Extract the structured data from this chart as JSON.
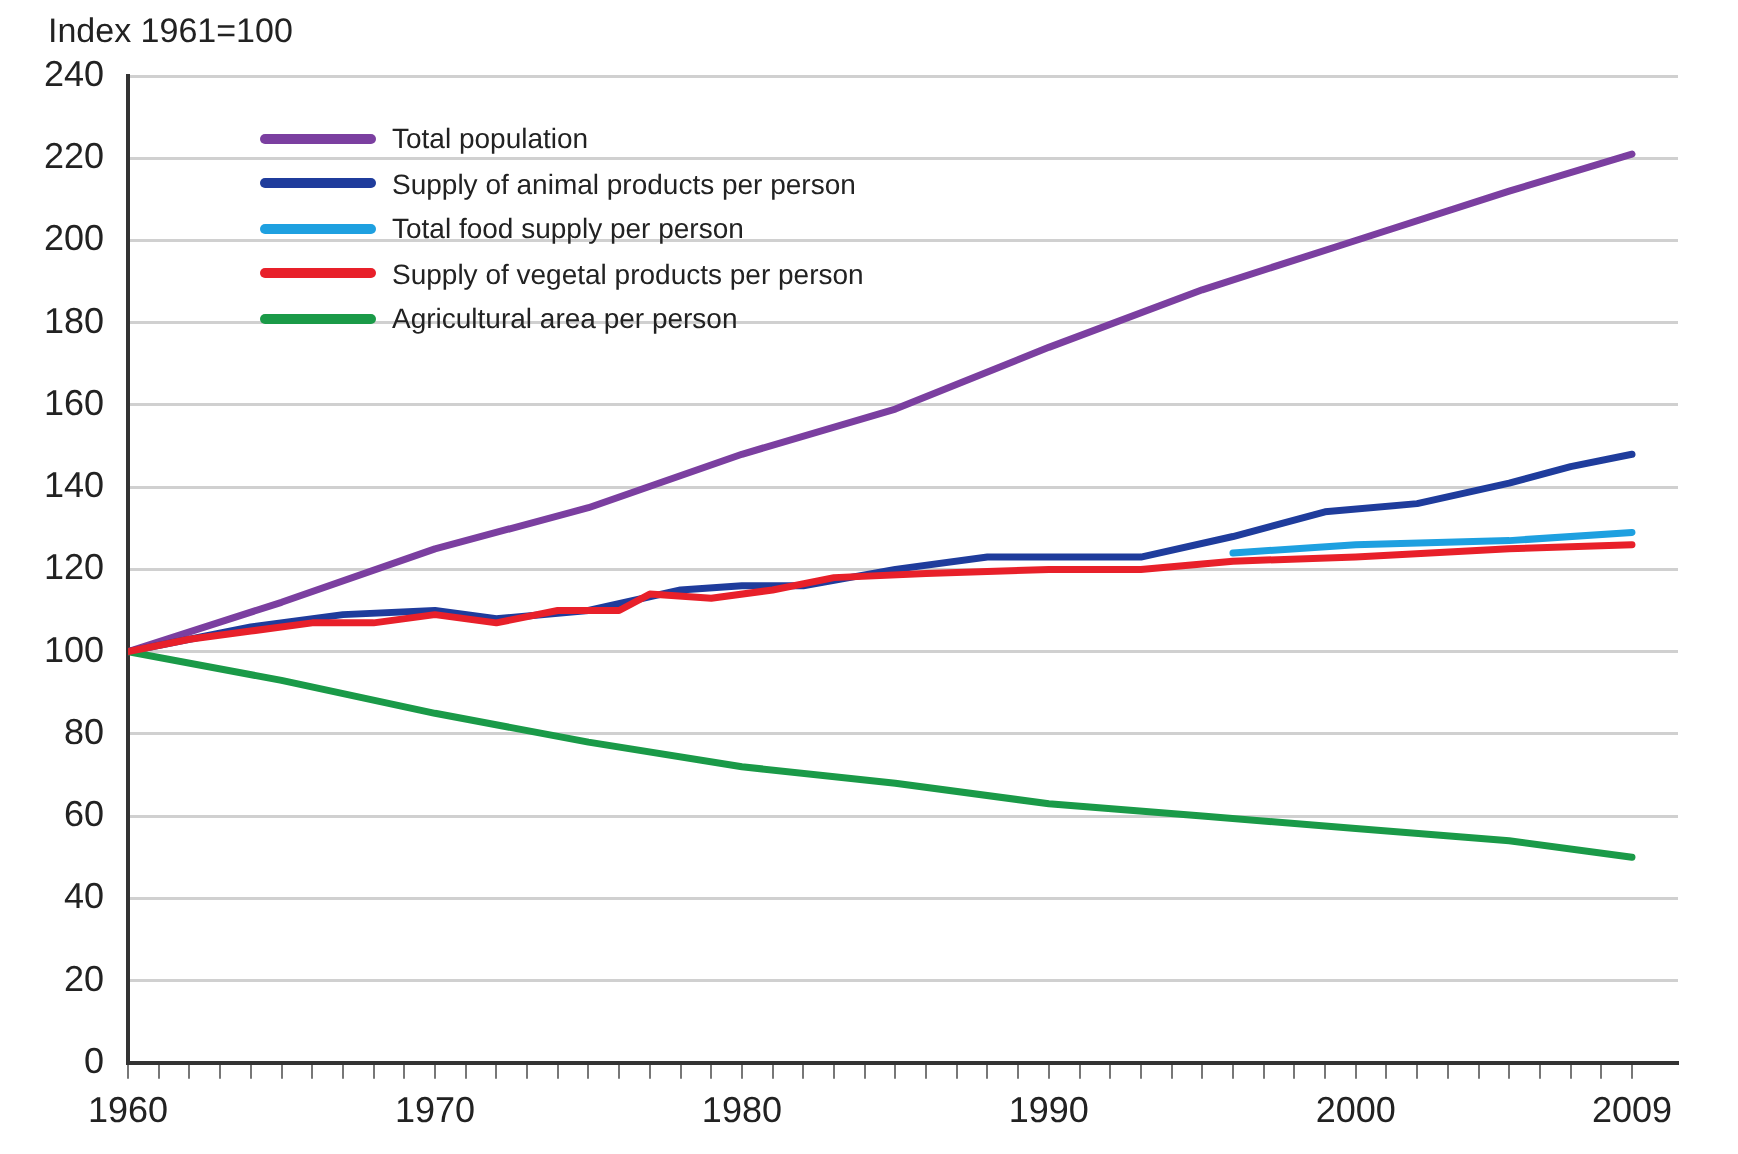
{
  "chart_data": {
    "type": "line",
    "ylabel": "Index 1961=100",
    "xlim": [
      1960,
      2010.5
    ],
    "xticks": [
      1960,
      {
        "value": 1961,
        "label": null
      },
      {
        "value": 1962,
        "label": null
      },
      {
        "value": 1963,
        "label": null
      },
      {
        "value": 1964,
        "label": null
      },
      {
        "value": 1965,
        "label": null
      },
      {
        "value": 1966,
        "label": null
      },
      {
        "value": 1967,
        "label": null
      },
      {
        "value": 1968,
        "label": null
      },
      {
        "value": 1969,
        "label": null
      },
      1970,
      {
        "value": 1971,
        "label": null
      },
      {
        "value": 1972,
        "label": null
      },
      {
        "value": 1973,
        "label": null
      },
      {
        "value": 1974,
        "label": null
      },
      {
        "value": 1975,
        "label": null
      },
      {
        "value": 1976,
        "label": null
      },
      {
        "value": 1977,
        "label": null
      },
      {
        "value": 1978,
        "label": null
      },
      {
        "value": 1979,
        "label": null
      },
      1980,
      {
        "value": 1981,
        "label": null
      },
      {
        "value": 1982,
        "label": null
      },
      {
        "value": 1983,
        "label": null
      },
      {
        "value": 1984,
        "label": null
      },
      {
        "value": 1985,
        "label": null
      },
      {
        "value": 1986,
        "label": null
      },
      {
        "value": 1987,
        "label": null
      },
      {
        "value": 1988,
        "label": null
      },
      {
        "value": 1989,
        "label": null
      },
      1990,
      {
        "value": 1991,
        "label": null
      },
      {
        "value": 1992,
        "label": null
      },
      {
        "value": 1993,
        "label": null
      },
      {
        "value": 1994,
        "label": null
      },
      {
        "value": 1995,
        "label": null
      },
      {
        "value": 1996,
        "label": null
      },
      {
        "value": 1997,
        "label": null
      },
      {
        "value": 1998,
        "label": null
      },
      {
        "value": 1999,
        "label": null
      },
      2000,
      {
        "value": 2001,
        "label": null
      },
      {
        "value": 2002,
        "label": null
      },
      {
        "value": 2003,
        "label": null
      },
      {
        "value": 2004,
        "label": null
      },
      {
        "value": 2005,
        "label": null
      },
      {
        "value": 2006,
        "label": null
      },
      {
        "value": 2007,
        "label": null
      },
      {
        "value": 2008,
        "label": null
      },
      2009
    ],
    "ylim": [
      0,
      240
    ],
    "yticks": [
      0,
      20,
      40,
      60,
      80,
      100,
      120,
      140,
      160,
      180,
      200,
      220,
      240
    ],
    "grid": "y",
    "legend": "top left",
    "marker": "none",
    "line_style": "solid",
    "series": [
      {
        "name": "Total population",
        "color": "#7b3fa0",
        "x": [
          1960,
          1965,
          1970,
          1975,
          1980,
          1985,
          1990,
          1995,
          2000,
          2005,
          2009
        ],
        "values": [
          100,
          112,
          125,
          135,
          148,
          159,
          174,
          188,
          200,
          212,
          221
        ]
      },
      {
        "name": "Supply of animal products per person",
        "color": "#1f3c9c",
        "x": [
          1960,
          1962,
          1964,
          1967,
          1970,
          1972,
          1975,
          1978,
          1980,
          1982,
          1985,
          1988,
          1993,
          1996,
          1999,
          2002,
          2005,
          2007,
          2009
        ],
        "values": [
          100,
          103,
          106,
          109,
          110,
          108,
          110,
          115,
          116,
          116,
          120,
          123,
          123,
          128,
          134,
          136,
          141,
          145,
          148
        ]
      },
      {
        "name": "Total food supply per person",
        "color": "#1ea0e0",
        "x": [
          1996,
          2000,
          2005,
          2009
        ],
        "values": [
          124,
          126,
          127,
          129
        ]
      },
      {
        "name": "Supply of vegetal products per person",
        "color": "#e8202a",
        "x": [
          1960,
          1962,
          1964,
          1966,
          1968,
          1970,
          1972,
          1974,
          1976,
          1977,
          1979,
          1981,
          1983,
          1986,
          1990,
          1993,
          1996,
          2000,
          2005,
          2009
        ],
        "values": [
          100,
          103,
          105,
          107,
          107,
          109,
          107,
          110,
          110,
          114,
          113,
          115,
          118,
          119,
          120,
          120,
          122,
          123,
          125,
          126
        ]
      },
      {
        "name": "Agricultural area per person",
        "color": "#1a9a48",
        "x": [
          1960,
          1965,
          1970,
          1975,
          1980,
          1985,
          1990,
          1995,
          2000,
          2005,
          2009
        ],
        "values": [
          100,
          93,
          85,
          78,
          72,
          68,
          63,
          60,
          57,
          54,
          50
        ]
      }
    ]
  }
}
